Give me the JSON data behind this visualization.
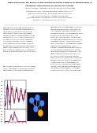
{
  "title_line1": "High-Resolution Mn EXAFS of the Oxygen-Evolving Complex in Photosystem II:",
  "title_line2": "Structural Implications for the Mn4Ca Cluster",
  "authors": "Junko Yano, Yulia Pushkar, Pieter Glatzel, Bruce Diner, Jan Messinger, Vittal Yachandra",
  "bg_color": "#ffffff",
  "title_color": "#000000",
  "line_color_blue": "#0000bb",
  "line_color_red": "#cc0000",
  "bar_color_blue": "#0000bb",
  "bar_color_red": "#cc0000",
  "mol_bg": "#0a0a1a",
  "mn_color": "#4488ff",
  "ca_color": "#ffaa00",
  "sep_color": "#aaaaaa"
}
